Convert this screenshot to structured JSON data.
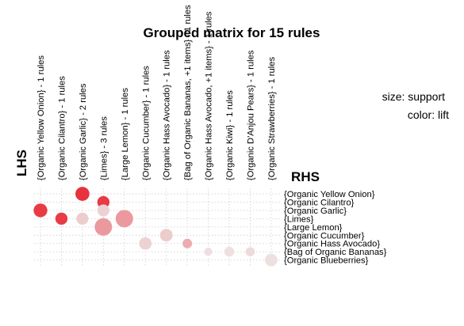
{
  "chart_data": {
    "type": "grouped-matrix",
    "title": "Grouped matrix for 15 rules",
    "xlabel": "RHS",
    "ylabel": "LHS",
    "legend": {
      "size": "size: support",
      "color": "color: lift",
      "placement": "right"
    },
    "grid": true,
    "columns": [
      "{Organic Yellow Onion} - 1 rules",
      "{Organic Cilantro} - 1 rules",
      "{Organic Garlic} - 2 rules",
      "{Limes} - 3 rules",
      "{Large Lemon} - 1 rules",
      "{Organic Cucumber} - 1 rules",
      "{Organic Hass Avocado} - 1 rules",
      "{Bag of Organic Bananas, +1 items} - 1 rules",
      "{Organic Hass Avocado, +1 items} - 1 rules",
      "{Organic Kiwi} - 1 rules",
      "{Organic D'Anjou Pears} - 1 rules",
      "{Organic Strawberries} - 1 rules"
    ],
    "rows": [
      "{Organic Yellow Onion}",
      "{Organic Cilantro}",
      "{Organic Garlic}",
      "{Limes}",
      "{Large Lemon}",
      "{Organic Cucumber}",
      "{Organic Hass Avocado}",
      "{Bag of Organic Bananas}",
      "{Organic Blueberries}"
    ],
    "points": [
      {
        "col": 0,
        "row": 2,
        "size": 0.55,
        "lift": 0.95
      },
      {
        "col": 1,
        "row": 3,
        "size": 0.4,
        "lift": 0.95
      },
      {
        "col": 2,
        "row": 0,
        "size": 0.58,
        "lift": 1.0
      },
      {
        "col": 2,
        "row": 3,
        "size": 0.38,
        "lift": 0.18
      },
      {
        "col": 3,
        "row": 1,
        "size": 0.4,
        "lift": 0.95
      },
      {
        "col": 3,
        "row": 2,
        "size": 0.38,
        "lift": 0.15
      },
      {
        "col": 3,
        "row": 4,
        "size": 1.0,
        "lift": 0.45
      },
      {
        "col": 4,
        "row": 3,
        "size": 1.0,
        "lift": 0.45
      },
      {
        "col": 5,
        "row": 6,
        "size": 0.42,
        "lift": 0.15
      },
      {
        "col": 6,
        "row": 5,
        "size": 0.44,
        "lift": 0.18
      },
      {
        "col": 7,
        "row": 6,
        "size": 0.2,
        "lift": 0.35
      },
      {
        "col": 8,
        "row": 7,
        "size": 0.12,
        "lift": 0.08
      },
      {
        "col": 9,
        "row": 7,
        "size": 0.22,
        "lift": 0.08
      },
      {
        "col": 10,
        "row": 7,
        "size": 0.18,
        "lift": 0.1
      },
      {
        "col": 11,
        "row": 8,
        "size": 0.44,
        "lift": 0.08
      }
    ],
    "colors": {
      "high": "#e8323c",
      "low": "#eeeeee"
    }
  }
}
